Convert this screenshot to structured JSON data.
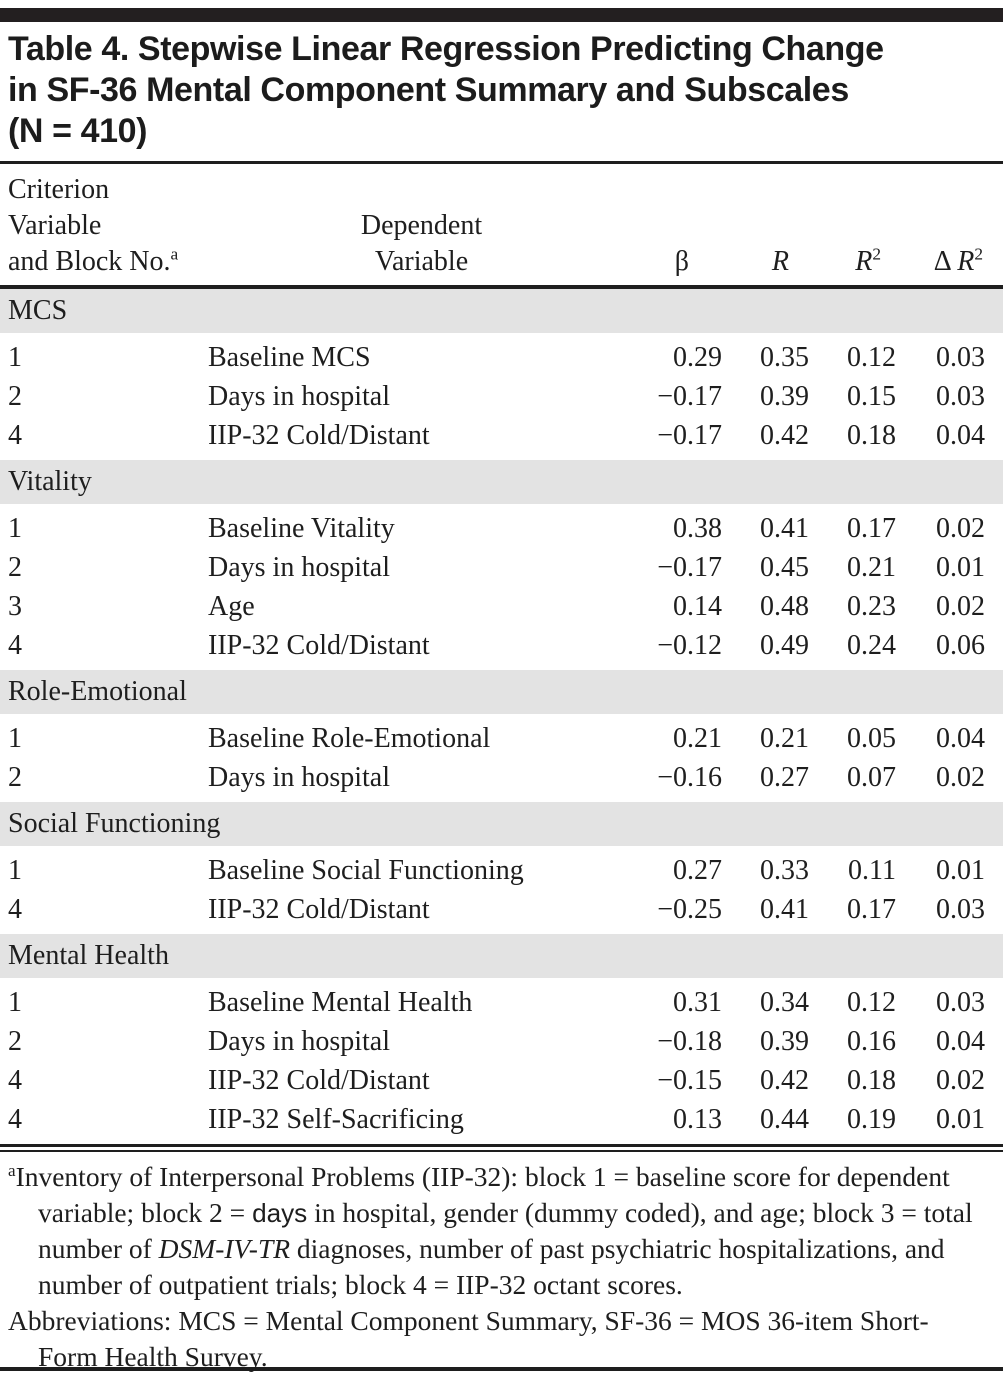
{
  "colors": {
    "section_band": "#e3e3e3",
    "rule": "#1e1e1e",
    "text": "#1e1e1e",
    "background": "#ffffff"
  },
  "title": {
    "lines": [
      "Table 4. Stepwise Linear Regression Predicting Change",
      "in SF-36 Mental Component Summary and Subscales",
      "(N = 410)"
    ]
  },
  "table": {
    "header": {
      "col1": {
        "lines": [
          "Criterion",
          "Variable",
          "and Block No."
        ],
        "superscript": "a"
      },
      "col2": {
        "lines": [
          "Dependent",
          "Variable"
        ]
      },
      "stats": [
        {
          "prefix": "",
          "symbol": "β",
          "sup": ""
        },
        {
          "prefix": "",
          "symbol": "R",
          "sup": ""
        },
        {
          "prefix": "",
          "symbol": "R",
          "sup": "2"
        },
        {
          "prefix": "Δ ",
          "symbol": "R",
          "sup": "2"
        }
      ]
    },
    "sections": [
      {
        "label": "MCS",
        "rows": [
          {
            "block": "1",
            "variable": "Baseline MCS",
            "beta": "0.29",
            "r": "0.35",
            "r2": "0.12",
            "delta_r2": "0.03"
          },
          {
            "block": "2",
            "variable": "Days in hospital",
            "beta": "−0.17",
            "r": "0.39",
            "r2": "0.15",
            "delta_r2": "0.03"
          },
          {
            "block": "4",
            "variable": "IIP-32 Cold/Distant",
            "beta": "−0.17",
            "r": "0.42",
            "r2": "0.18",
            "delta_r2": "0.04"
          }
        ]
      },
      {
        "label": "Vitality",
        "rows": [
          {
            "block": "1",
            "variable": "Baseline Vitality",
            "beta": "0.38",
            "r": "0.41",
            "r2": "0.17",
            "delta_r2": "0.02"
          },
          {
            "block": "2",
            "variable": "Days in hospital",
            "beta": "−0.17",
            "r": "0.45",
            "r2": "0.21",
            "delta_r2": "0.01"
          },
          {
            "block": "3",
            "variable": "Age",
            "beta": "0.14",
            "r": "0.48",
            "r2": "0.23",
            "delta_r2": "0.02"
          },
          {
            "block": "4",
            "variable": "IIP-32 Cold/Distant",
            "beta": "−0.12",
            "r": "0.49",
            "r2": "0.24",
            "delta_r2": "0.06"
          }
        ]
      },
      {
        "label": "Role-Emotional",
        "rows": [
          {
            "block": "1",
            "variable": "Baseline Role-Emotional",
            "beta": "0.21",
            "r": "0.21",
            "r2": "0.05",
            "delta_r2": "0.04"
          },
          {
            "block": "2",
            "variable": "Days in hospital",
            "beta": "−0.16",
            "r": "0.27",
            "r2": "0.07",
            "delta_r2": "0.02"
          }
        ]
      },
      {
        "label": "Social Functioning",
        "rows": [
          {
            "block": "1",
            "variable": "Baseline Social Functioning",
            "beta": "0.27",
            "r": "0.33",
            "r2": "0.11",
            "delta_r2": "0.01"
          },
          {
            "block": "4",
            "variable": "IIP-32 Cold/Distant",
            "beta": "−0.25",
            "r": "0.41",
            "r2": "0.17",
            "delta_r2": "0.03"
          }
        ]
      },
      {
        "label": "Mental Health",
        "rows": [
          {
            "block": "1",
            "variable": "Baseline Mental Health",
            "beta": "0.31",
            "r": "0.34",
            "r2": "0.12",
            "delta_r2": "0.03"
          },
          {
            "block": "2",
            "variable": "Days in hospital",
            "beta": "−0.18",
            "r": "0.39",
            "r2": "0.16",
            "delta_r2": "0.04"
          },
          {
            "block": "4",
            "variable": "IIP-32 Cold/Distant",
            "beta": "−0.15",
            "r": "0.42",
            "r2": "0.18",
            "delta_r2": "0.02"
          },
          {
            "block": "4",
            "variable": "IIP-32 Self-Sacrificing",
            "beta": "0.13",
            "r": "0.44",
            "r2": "0.19",
            "delta_r2": "0.01"
          }
        ]
      }
    ]
  },
  "footnotes": {
    "a": {
      "marker": "a",
      "part1": "Inventory of Interpersonal Problems (IIP-32): block 1 = baseline score for dependent variable; block 2 = ",
      "days_word": "days",
      "part2": " in hospital, gender (dummy coded), and age; block 3 = total number of ",
      "dsm": "DSM-IV-TR",
      "part3": " diagnoses, number of past psychiatric hospitalizations, and number of outpatient trials; block 4 = IIP-32 octant scores."
    },
    "abbreviations": "Abbreviations: MCS = Mental Component Summary, SF-36 = MOS 36-item Short-Form Health Survey."
  }
}
